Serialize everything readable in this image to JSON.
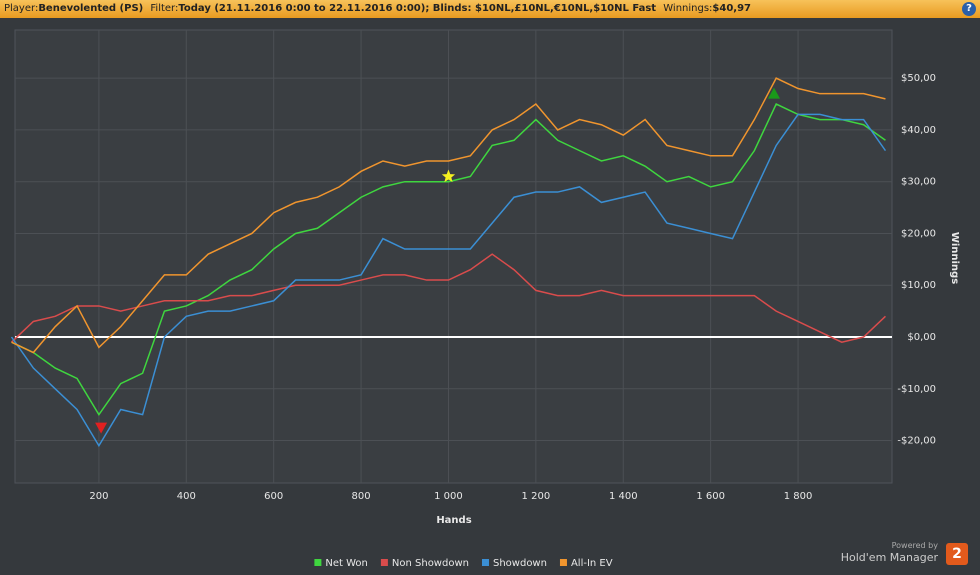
{
  "chart_data": {
    "type": "line",
    "header": {
      "player_label": "Player:",
      "player": "Benevolented (PS)",
      "filter_label": "Filter:",
      "filter": "Today (21.11.2016 0:00 to 22.11.2016 0:00); Blinds: $10NL,£10NL,€10NL,$10NL Fast",
      "winnings_label": "Winnings:",
      "winnings": "$40,97",
      "help": "?"
    },
    "xlabel": "Hands",
    "ylabel": "Winnings",
    "x": [
      0,
      50,
      100,
      150,
      200,
      250,
      300,
      350,
      400,
      450,
      500,
      550,
      600,
      650,
      700,
      750,
      800,
      850,
      900,
      950,
      1000,
      1050,
      1100,
      1150,
      1200,
      1250,
      1300,
      1350,
      1400,
      1450,
      1500,
      1550,
      1600,
      1650,
      1700,
      1750,
      1800,
      1850,
      1900,
      1950,
      2000
    ],
    "series": [
      {
        "name": "Net Won",
        "color": "#3fd63f",
        "values": [
          -1,
          -3,
          -6,
          -8,
          -15,
          -9,
          -7,
          5,
          6,
          8,
          11,
          13,
          17,
          20,
          21,
          24,
          27,
          29,
          30,
          30,
          30,
          31,
          37,
          38,
          42,
          38,
          36,
          34,
          35,
          33,
          30,
          31,
          29,
          30,
          36,
          45,
          43,
          42,
          42,
          41,
          38
        ]
      },
      {
        "name": "Non Showdown",
        "color": "#d94c4c",
        "values": [
          -1,
          3,
          4,
          6,
          6,
          5,
          6,
          7,
          7,
          7,
          8,
          8,
          9,
          10,
          10,
          10,
          11,
          12,
          12,
          11,
          11,
          13,
          16,
          13,
          9,
          8,
          8,
          9,
          8,
          8,
          8,
          8,
          8,
          8,
          8,
          5,
          3,
          1,
          -1,
          0,
          4
        ]
      },
      {
        "name": "Showdown",
        "color": "#3b8fd4",
        "values": [
          0,
          -6,
          -10,
          -14,
          -21,
          -14,
          -15,
          0,
          4,
          5,
          5,
          6,
          7,
          11,
          11,
          11,
          12,
          19,
          17,
          17,
          17,
          17,
          22,
          27,
          28,
          28,
          29,
          26,
          27,
          28,
          22,
          21,
          20,
          19,
          28,
          37,
          43,
          43,
          42,
          42,
          36
        ]
      },
      {
        "name": "All-In EV",
        "color": "#f0952e",
        "values": [
          -1,
          -3,
          2,
          6,
          -2,
          2,
          7,
          12,
          12,
          16,
          18,
          20,
          24,
          26,
          27,
          29,
          32,
          34,
          33,
          34,
          34,
          35,
          40,
          42,
          45,
          40,
          42,
          41,
          39,
          42,
          37,
          36,
          35,
          35,
          42,
          50,
          48,
          47,
          47,
          47,
          46
        ]
      }
    ],
    "markers": [
      {
        "x": 205,
        "y": -17.5,
        "shape": "triangle-down",
        "color": "#e02020"
      },
      {
        "x": 1000,
        "y": 31,
        "shape": "star",
        "color": "#f5f020"
      },
      {
        "x": 1745,
        "y": 47,
        "shape": "triangle-up",
        "color": "#1a9a1a"
      }
    ],
    "xlim": [
      8,
      2015
    ],
    "ylim": [
      -28.2,
      59.3
    ],
    "xticks": [
      200,
      400,
      600,
      800,
      {
        "value": 1000,
        "label": "1 000"
      },
      {
        "value": 1200,
        "label": "1 200"
      },
      {
        "value": 1400,
        "label": "1 400"
      },
      {
        "value": 1600,
        "label": "1 600"
      },
      {
        "value": 1800,
        "label": "1 800"
      }
    ],
    "yticks": [
      {
        "value": -20,
        "label": "-$20,00"
      },
      {
        "value": -10,
        "label": "-$10,00"
      },
      {
        "value": 0,
        "label": "$0,00"
      },
      {
        "value": 10,
        "label": "$10,00"
      },
      {
        "value": 20,
        "label": "$20,00"
      },
      {
        "value": 30,
        "label": "$30,00"
      },
      {
        "value": 40,
        "label": "$40,00"
      },
      {
        "value": 50,
        "label": "$50,00"
      }
    ],
    "grid": true,
    "zero_line": true,
    "legend": "bottom",
    "branding": {
      "powered": "Powered by",
      "product": "Hold'em Manager",
      "version": "2"
    }
  }
}
